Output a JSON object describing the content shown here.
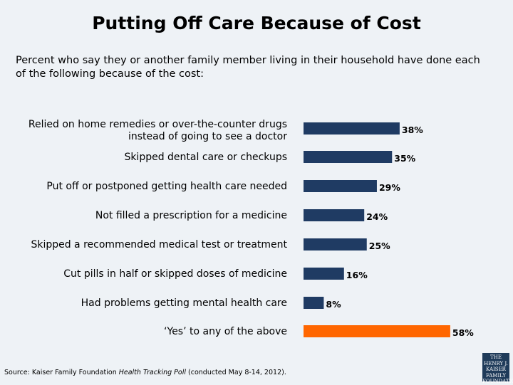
{
  "title": "Putting Off Care Because of Cost",
  "subtitle": "Percent who say they or another family member living in their household have done each of the following because of the cost:",
  "source": {
    "prefix": "Source: Kaiser Family Foundation ",
    "italic": "Health Tracking Poll",
    "suffix": " (conducted May 8-14, 2012)."
  },
  "logo": {
    "line1": "THE HENRY J.",
    "line2": "KAISER",
    "line3": "FAMILY",
    "line4": "FOUNDATION"
  },
  "colors": {
    "primary": "#1f3b63",
    "highlight": "#ff6600",
    "background": "#eef2f6"
  },
  "chart_data": {
    "type": "bar",
    "orientation": "horizontal",
    "title": "Putting Off Care Because of Cost",
    "categories": [
      [
        "Relied on home remedies or over-the-counter drugs",
        "instead of going to see a doctor"
      ],
      [
        "Skipped dental care or checkups"
      ],
      [
        "Put off or postponed getting health care needed"
      ],
      [
        "Not filled a prescription for a medicine"
      ],
      [
        "Skipped a recommended medical test or treatment"
      ],
      [
        "Cut pills in half or skipped doses of medicine"
      ],
      [
        "Had problems getting mental health care"
      ],
      [
        "‘Yes’ to any of the above"
      ]
    ],
    "values": [
      38,
      35,
      29,
      24,
      25,
      16,
      8,
      58
    ],
    "value_labels": [
      "38%",
      "35%",
      "29%",
      "24%",
      "25%",
      "16%",
      "8%",
      "58%"
    ],
    "highlight_index": 7,
    "xlim": [
      0,
      100
    ]
  }
}
